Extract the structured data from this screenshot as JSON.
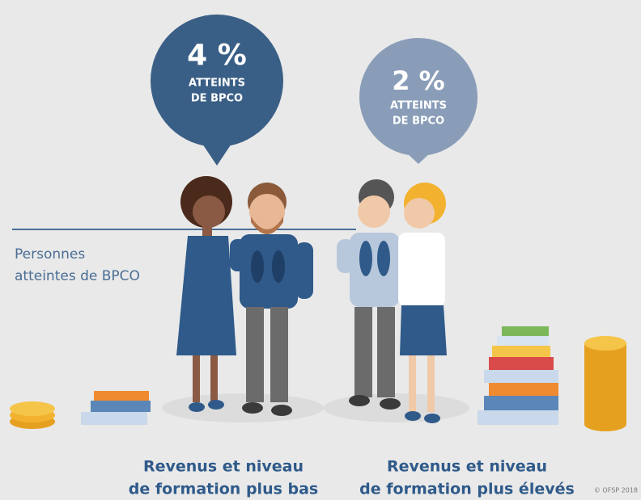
{
  "left": {
    "percent": "4 %",
    "caption_line1": "ATTEINTS",
    "caption_line2": "DE BPCO",
    "label_line1": "Revenus et niveau",
    "label_line2": "de formation plus bas"
  },
  "right": {
    "percent": "2 %",
    "caption_line1": "ATTEINTS",
    "caption_line2": "DE BPCO",
    "label_line1": "Revenus et niveau",
    "label_line2": "de formation plus élevés"
  },
  "legend": {
    "line1": "Personnes",
    "line2": "atteintes de BPCO"
  },
  "credit": "© OFSP 2018"
}
